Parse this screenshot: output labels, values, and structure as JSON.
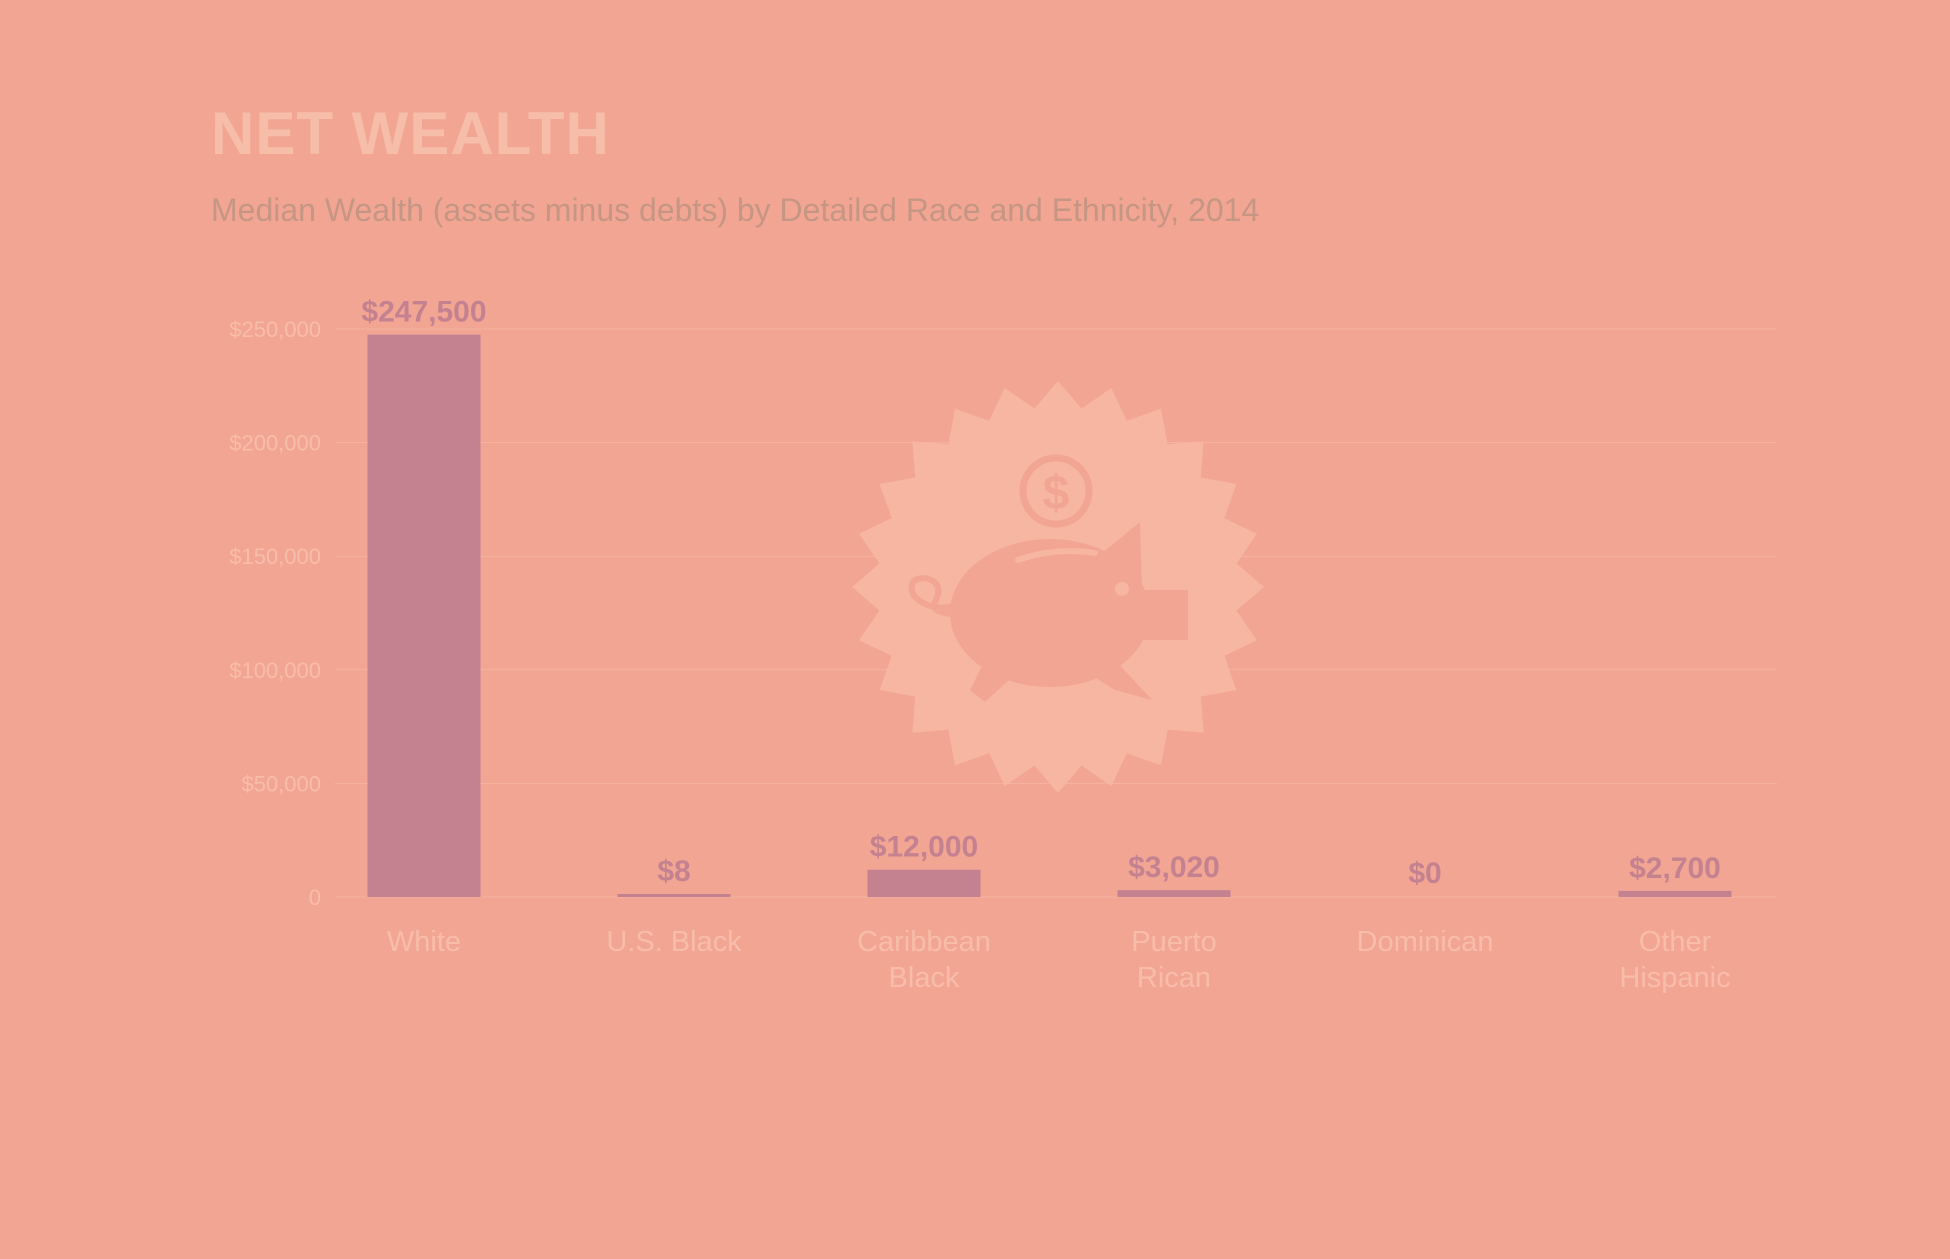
{
  "colors": {
    "background": "#f2a592",
    "bar": "#c48291",
    "title": "#f6bda8",
    "subtitle": "#c69684",
    "axis_text": "#f8bdaa",
    "value_label": "#c48291",
    "badge": "#f6b6a2"
  },
  "header": {
    "title": "NET WEALTH",
    "subtitle": "Median Wealth (assets minus debts) by Detailed Race and Ethnicity, 2014"
  },
  "icon": {
    "name": "piggy-bank-icon"
  },
  "chart_data": {
    "type": "bar",
    "title": "NET WEALTH",
    "subtitle": "Median Wealth (assets minus debts) by Detailed Race and Ethnicity, 2014",
    "categories": [
      [
        "White"
      ],
      [
        "U.S. Black"
      ],
      [
        "Caribbean",
        "Black"
      ],
      [
        "Puerto",
        "Rican"
      ],
      [
        "Dominican"
      ],
      [
        "Other",
        "Hispanic"
      ]
    ],
    "values": [
      247500,
      8,
      12000,
      3020,
      0,
      2700
    ],
    "value_labels": [
      "$247,500",
      "$8",
      "$12,000",
      "$3,020",
      "$0",
      "$2,700"
    ],
    "ylim": [
      0,
      250000
    ],
    "yticks": [
      0,
      50000,
      100000,
      150000,
      200000,
      250000
    ],
    "ytick_labels": [
      "0",
      "$50,000",
      "$100,000",
      "$150,000",
      "$200,000",
      "$250,000"
    ],
    "grid": true,
    "xlabel": "",
    "ylabel": ""
  }
}
